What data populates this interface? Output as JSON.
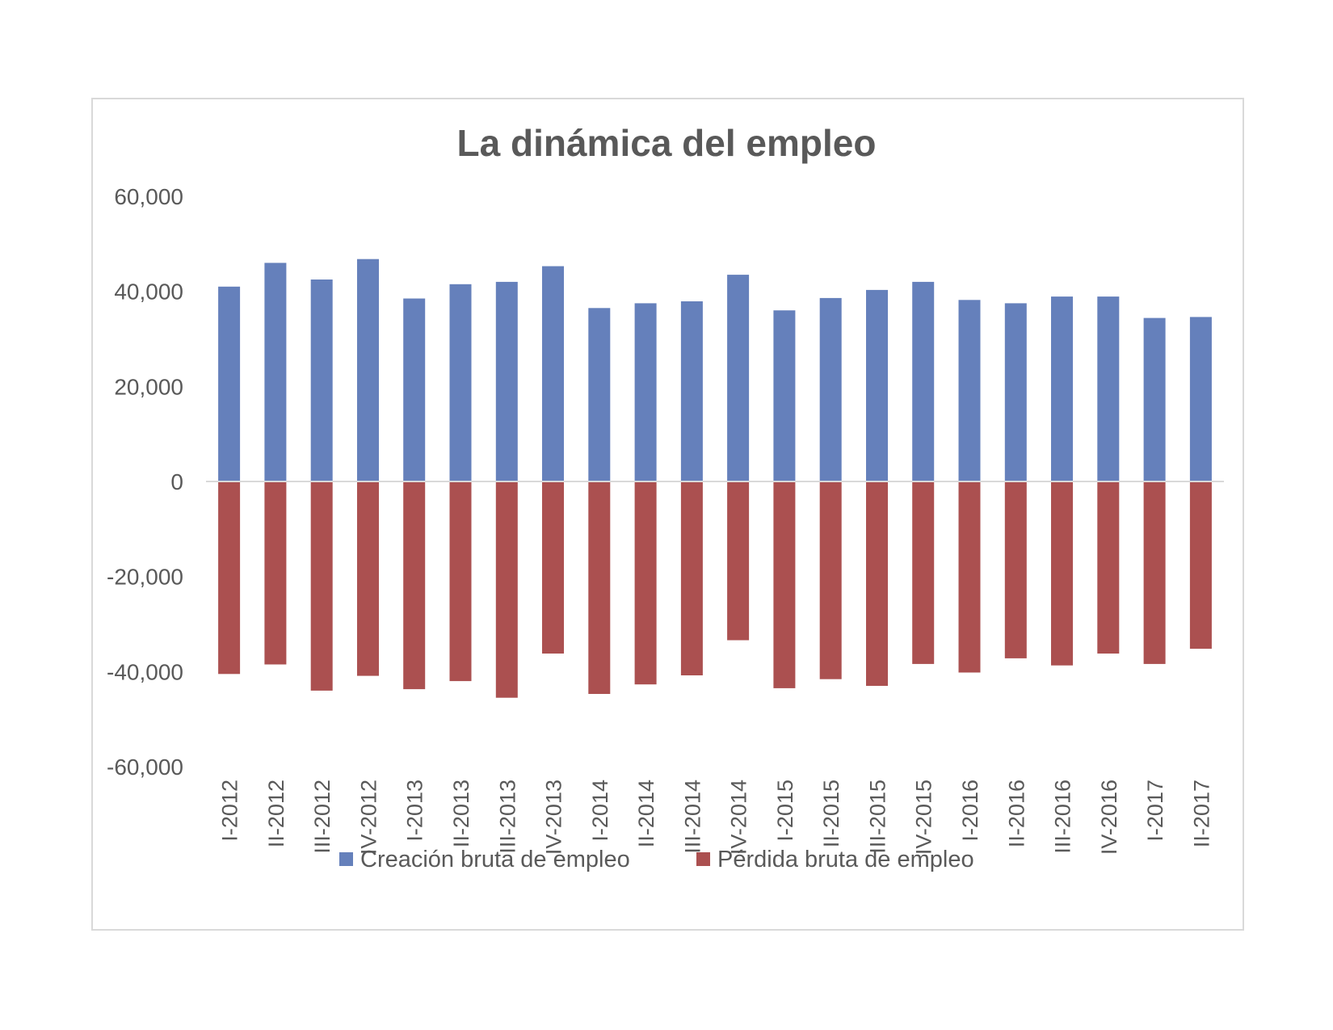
{
  "chart_data": {
    "type": "bar",
    "title": "La dinámica del empleo",
    "categories": [
      "I-2012",
      "II-2012",
      "III-2012",
      "IV-2012",
      "I-2013",
      "II-2013",
      "III-2013",
      "IV-2013",
      "I-2014",
      "II-2014",
      "III-2014",
      "IV-2014",
      "I-2015",
      "II-2015",
      "III-2015",
      "IV-2015",
      "I-2016",
      "II-2016",
      "III-2016",
      "IV-2016",
      "I-2017",
      "II-2017"
    ],
    "series": [
      {
        "name": "Creación bruta de empleo",
        "color": "#6580bb",
        "values": [
          41000,
          46000,
          42500,
          46800,
          38500,
          41500,
          42000,
          45300,
          36500,
          37500,
          37900,
          43500,
          36000,
          38600,
          40300,
          42000,
          38200,
          37500,
          38900,
          38900,
          34400,
          34600
        ]
      },
      {
        "name": "Pérdida bruta de empleo",
        "color": "#ab5050",
        "values": [
          -40500,
          -38500,
          -44000,
          -40900,
          -43700,
          -42000,
          -45500,
          -36200,
          -44700,
          -42700,
          -40800,
          -33400,
          -43500,
          -41600,
          -43000,
          -38400,
          -40200,
          -37200,
          -38700,
          -36200,
          -38400,
          -35200
        ]
      }
    ],
    "ylim": [
      -60000,
      60000
    ],
    "yticks": [
      60000,
      40000,
      20000,
      0,
      -20000,
      -40000,
      -60000
    ],
    "ytick_labels": [
      "60,000",
      "40,000",
      "20,000",
      "0",
      "-20,000",
      "-40,000",
      "-60,000"
    ],
    "xlabel": "",
    "ylabel": "",
    "legend_position": "bottom",
    "grid": false
  }
}
